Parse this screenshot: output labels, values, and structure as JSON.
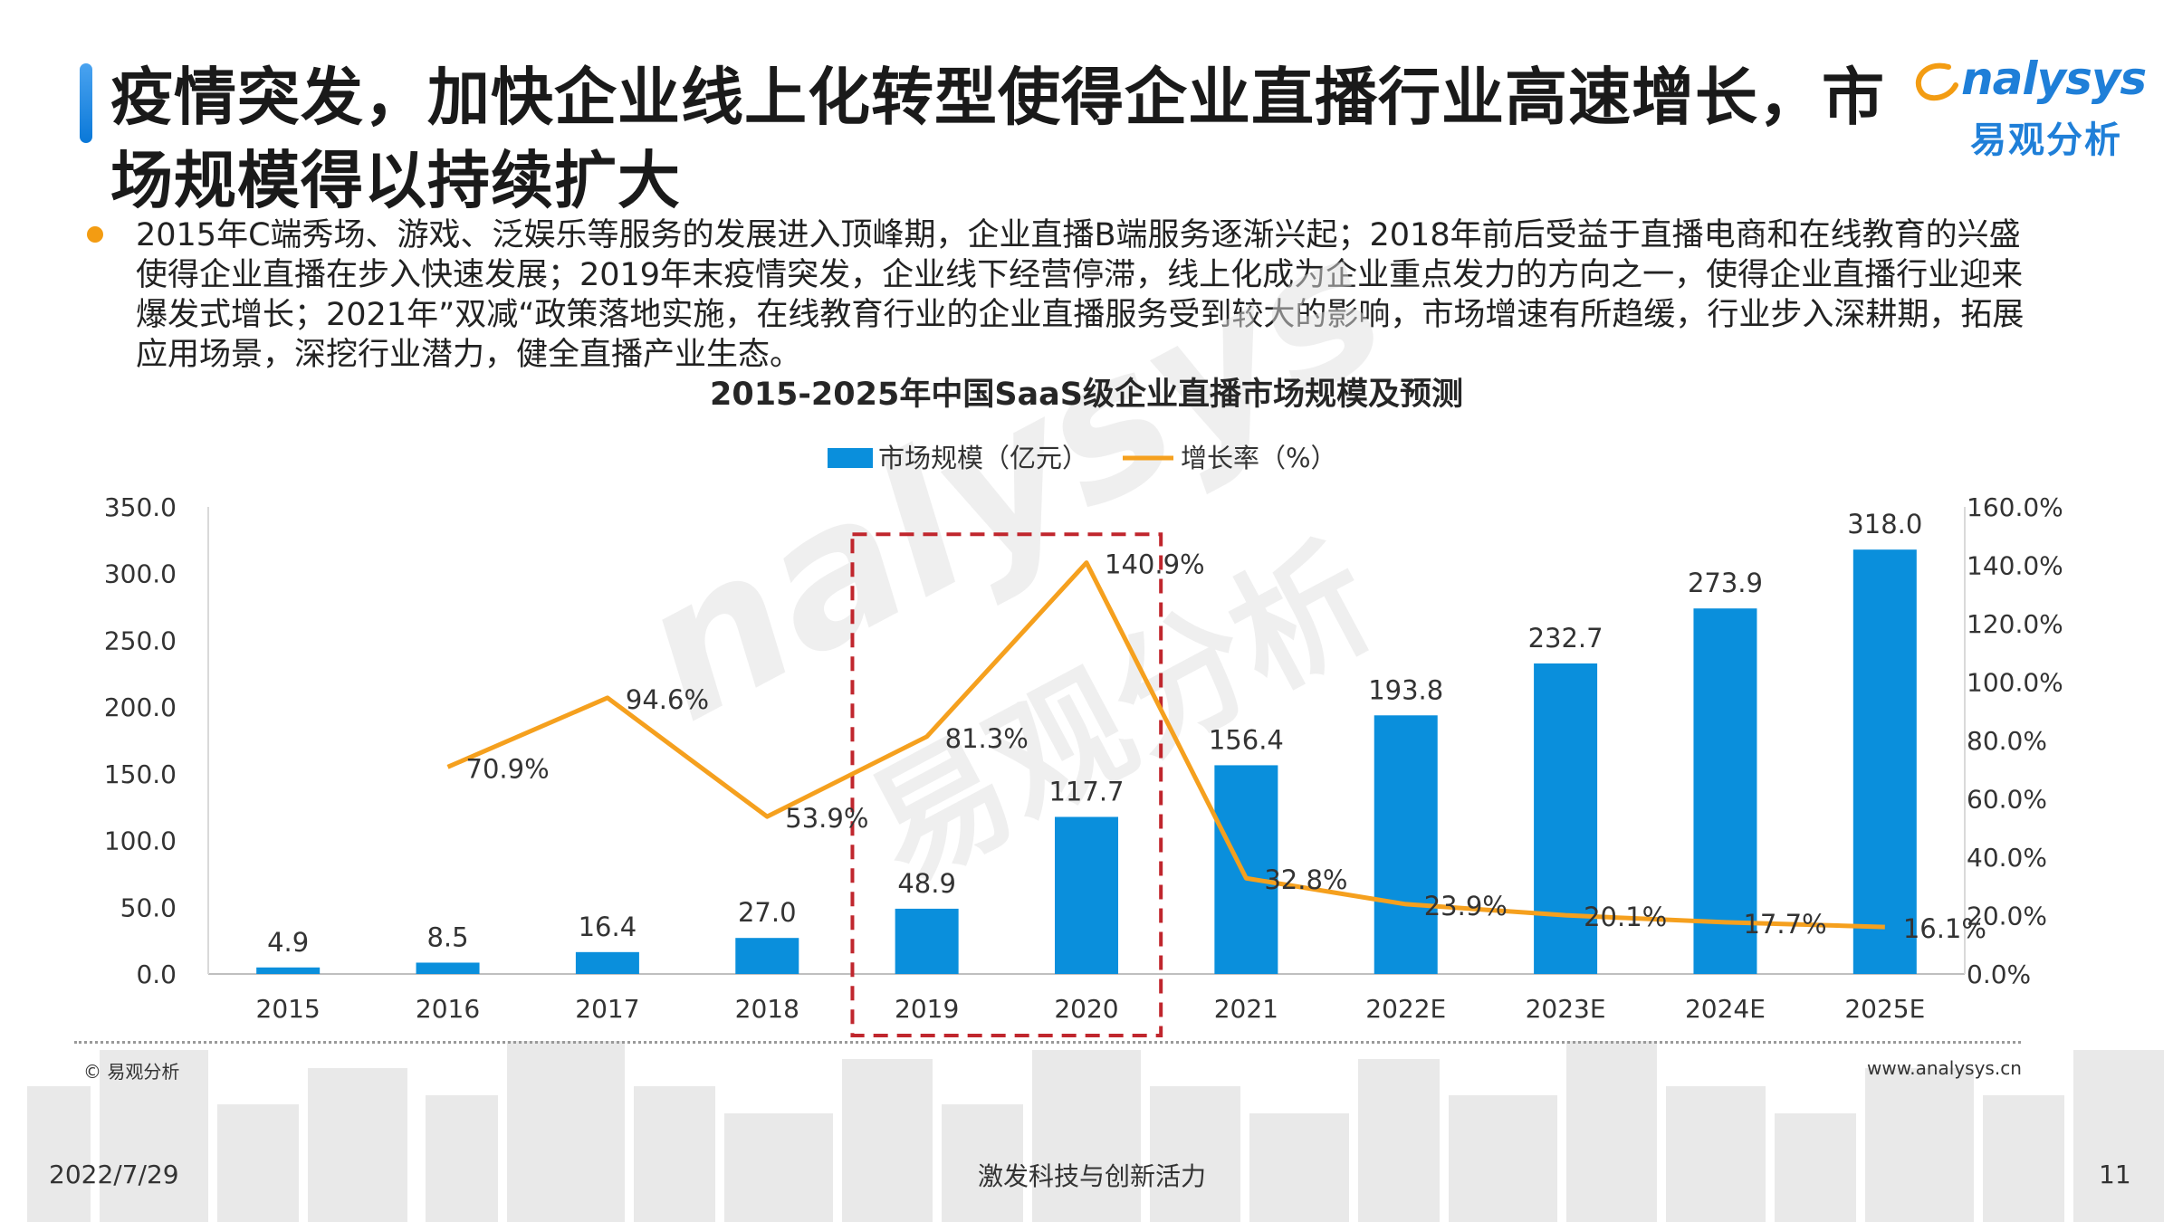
{
  "header": {
    "title": "疫情突发，加快企业线上化转型使得企业直播行业高速增长，市场规模得以持续扩大",
    "logo_en": "nalysys",
    "logo_cn": "易观分析"
  },
  "summary": "2015年C端秀场、游戏、泛娱乐等服务的发展进入顶峰期，企业直播B端服务逐渐兴起；2018年前后受益于直播电商和在线教育的兴盛使得企业直播在步入快速发展；2019年末疫情突发，企业线下经营停滞，线上化成为企业重点发力的方向之一，使得企业直播行业迎来爆发式增长；2021年”双减“政策落地实施，在线教育行业的企业直播服务受到较大的影响，市场增速有所趋缓，行业步入深耕期，拓展应用场景，深挖行业潜力，健全直播产业生态。",
  "chart_data": {
    "type": "bar",
    "title": "2015-2025年中国SaaS级企业直播市场规模及预测",
    "categories": [
      "2015",
      "2016",
      "2017",
      "2018",
      "2019",
      "2020",
      "2021",
      "2022E",
      "2023E",
      "2024E",
      "2025E"
    ],
    "series": [
      {
        "name": "市场规模（亿元）",
        "type": "bar",
        "axis": "left",
        "color": "#0a8fdc",
        "values": [
          4.9,
          8.5,
          16.4,
          27.0,
          48.9,
          117.7,
          156.4,
          193.8,
          232.7,
          273.9,
          318.0
        ],
        "labels": [
          "4.9",
          "8.5",
          "16.4",
          "27.0",
          "48.9",
          "117.7",
          "156.4",
          "193.8",
          "232.7",
          "273.9",
          "318.0"
        ]
      },
      {
        "name": "增长率（%）",
        "type": "line",
        "axis": "right",
        "color": "#f5a01e",
        "values": [
          null,
          70.9,
          94.6,
          53.9,
          81.3,
          140.9,
          32.8,
          23.9,
          20.1,
          17.7,
          16.1
        ],
        "labels": [
          null,
          "70.9%",
          "94.6%",
          "53.9%",
          "81.3%",
          "140.9%",
          "32.8%",
          "23.9%",
          "20.1%",
          "17.7%",
          "16.1%"
        ]
      }
    ],
    "y_left": {
      "min": 0,
      "max": 350,
      "ticks": [
        "0.0",
        "50.0",
        "100.0",
        "150.0",
        "200.0",
        "250.0",
        "300.0",
        "350.0"
      ]
    },
    "y_right": {
      "min": 0,
      "max": 160,
      "ticks": [
        "0.0%",
        "20.0%",
        "40.0%",
        "60.0%",
        "80.0%",
        "100.0%",
        "120.0%",
        "140.0%",
        "160.0%"
      ]
    },
    "highlight_categories": [
      "2019",
      "2020"
    ],
    "highlight_color": "#c0262d",
    "legend_position": "top",
    "grid": false
  },
  "watermark": {
    "en": "nalysys",
    "cn": "易观分析"
  },
  "footer": {
    "copyright": "© 易观分析",
    "website": "www.analysys.cn",
    "date": "2022/7/29",
    "slogan": "激发科技与创新活力",
    "page": "11"
  }
}
